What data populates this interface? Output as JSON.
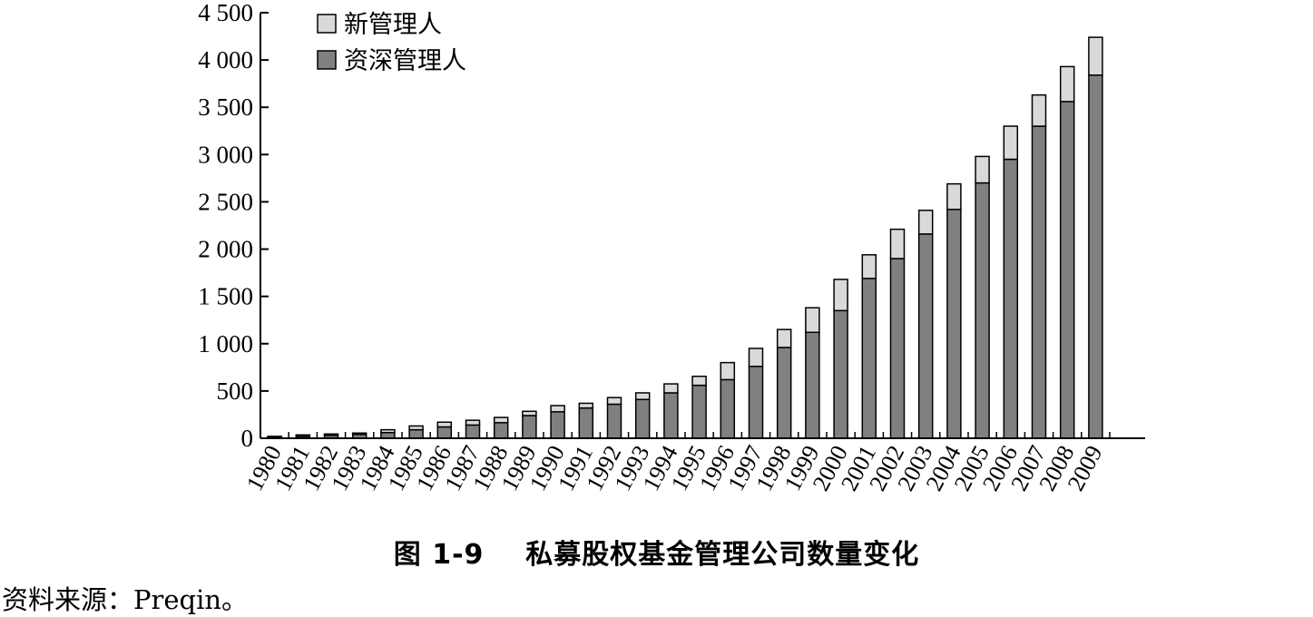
{
  "caption": "图 1-9    私募股权基金管理公司数量变化",
  "source": "资料来源：Preqin。",
  "colors": {
    "new": "#d9d9d9",
    "veteran": "#808080",
    "stroke": "#000000"
  },
  "chart_data": {
    "type": "bar",
    "stacked": true,
    "title": "",
    "xlabel": "",
    "ylabel": "",
    "ylim": [
      0,
      4500
    ],
    "yticks": [
      0,
      500,
      1000,
      1500,
      2000,
      2500,
      3000,
      3500,
      4000,
      4500
    ],
    "ytick_labels": [
      "0",
      "500",
      "1 000",
      "1 500",
      "2 000",
      "2 500",
      "3 000",
      "3 500",
      "4 000",
      "4 500"
    ],
    "grid": false,
    "legend_position": "top-left",
    "categories": [
      "1980",
      "1981",
      "1982",
      "1983",
      "1984",
      "1985",
      "1986",
      "1987",
      "1988",
      "1989",
      "1990",
      "1991",
      "1992",
      "1993",
      "1994",
      "1995",
      "1996",
      "1997",
      "1998",
      "1999",
      "2000",
      "2001",
      "2002",
      "2003",
      "2004",
      "2005",
      "2006",
      "2007",
      "2008",
      "2009"
    ],
    "series": [
      {
        "name": "资深管理人",
        "color": "#808080",
        "values": [
          15,
          20,
          30,
          40,
          60,
          90,
          120,
          140,
          165,
          240,
          280,
          320,
          360,
          410,
          480,
          560,
          620,
          760,
          960,
          1120,
          1350,
          1690,
          1900,
          2160,
          2420,
          2700,
          2950,
          3300,
          3560,
          3840
        ]
      },
      {
        "name": "新管理人",
        "color": "#d9d9d9",
        "values": [
          5,
          15,
          15,
          15,
          30,
          40,
          50,
          50,
          55,
          45,
          65,
          50,
          70,
          70,
          95,
          95,
          180,
          190,
          190,
          260,
          330,
          250,
          310,
          250,
          270,
          280,
          350,
          330,
          370,
          400
        ]
      }
    ]
  }
}
